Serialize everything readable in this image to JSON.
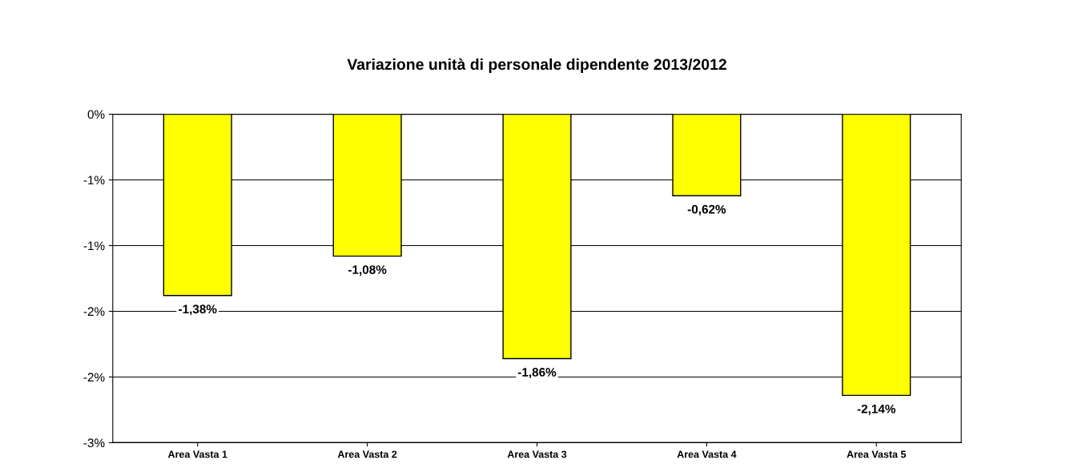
{
  "chart_data": {
    "type": "bar",
    "title": "Variazione unità di personale dipendente 2013/2012",
    "categories": [
      "Area Vasta 1",
      "Area Vasta 2",
      "Area Vasta 3",
      "Area Vasta 4",
      "Area Vasta 5"
    ],
    "values": [
      -1.38,
      -1.08,
      -1.86,
      -0.62,
      -2.14
    ],
    "value_labels": [
      "-1,38%",
      "-1,08%",
      "-1,86%",
      "-0,62%",
      "-2,14%"
    ],
    "color": "#ffff00",
    "ylim": [
      -2.5,
      0
    ],
    "yticks": [
      {
        "value": 0,
        "label": "0%"
      },
      {
        "value": -0.5,
        "label": "-1%"
      },
      {
        "value": -1.0,
        "label": "-1%"
      },
      {
        "value": -1.5,
        "label": "-2%"
      },
      {
        "value": -2.0,
        "label": "-2%"
      },
      {
        "value": -2.5,
        "label": "-3%"
      }
    ],
    "grid": "y"
  }
}
